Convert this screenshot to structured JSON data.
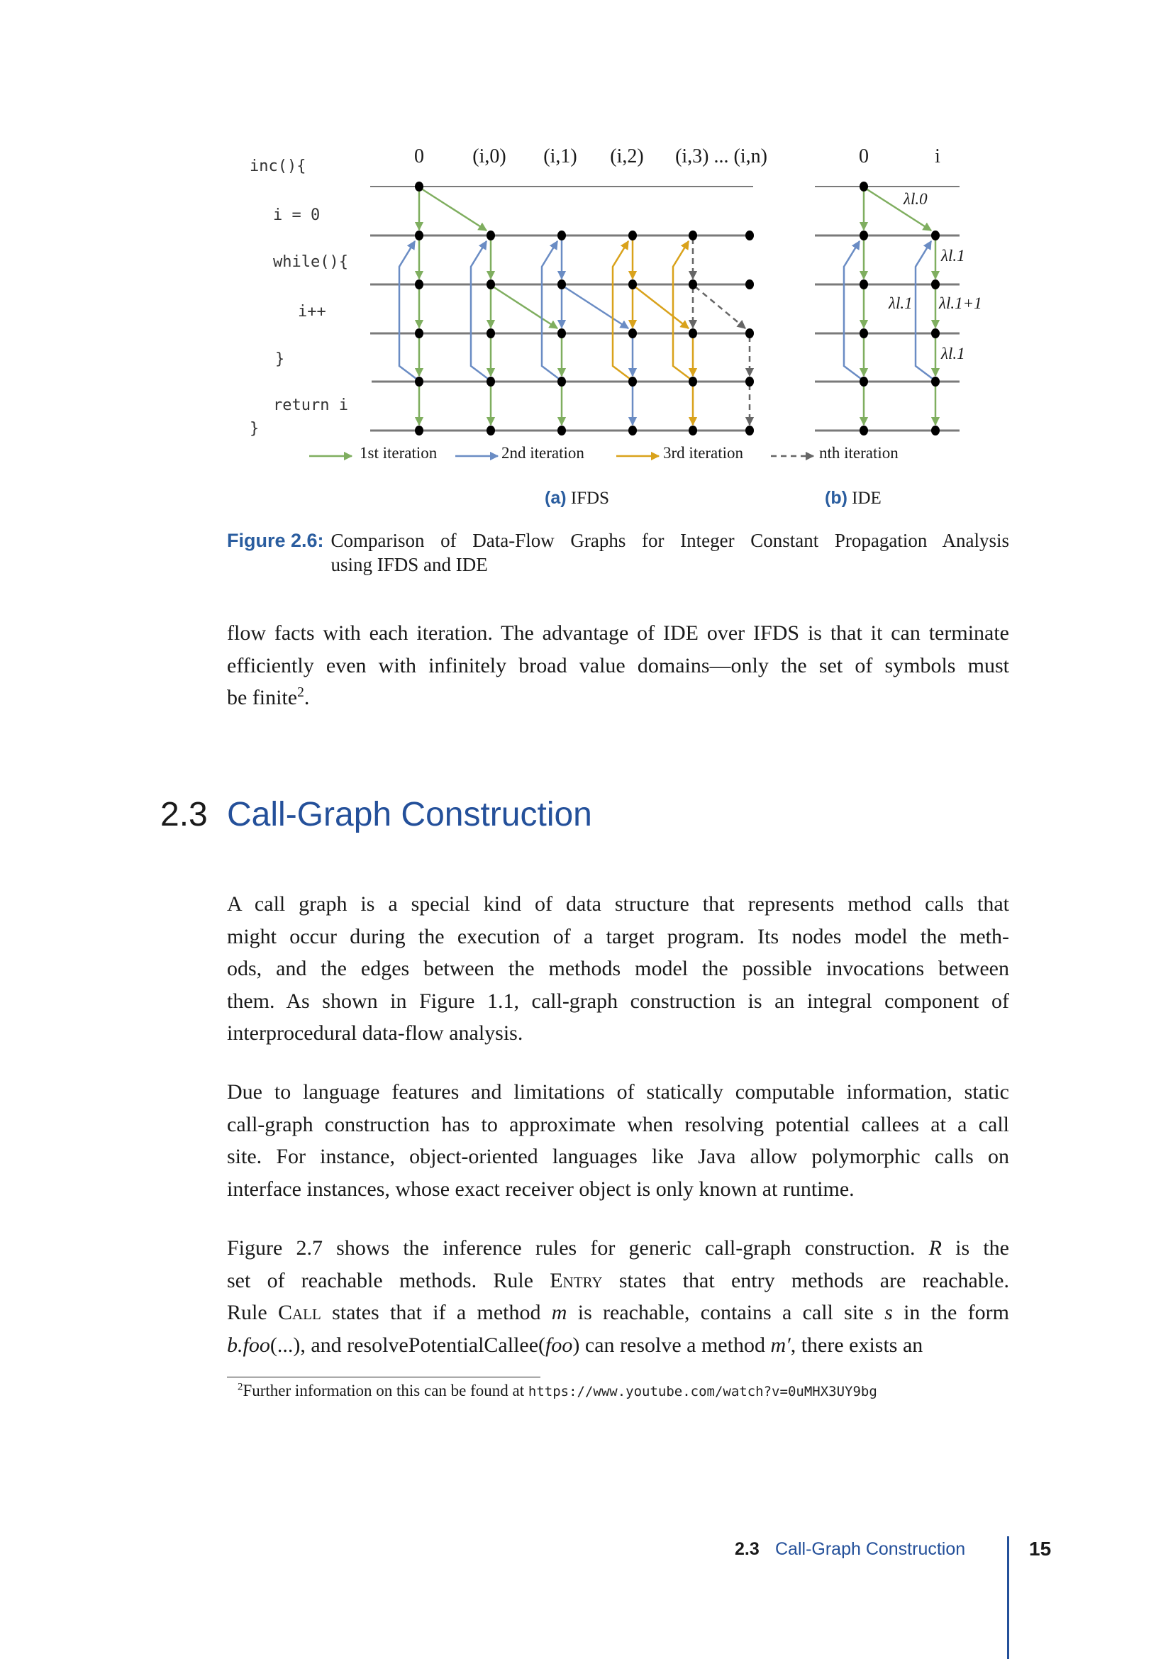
{
  "figure": {
    "code_lines": [
      "inc(){",
      "i = 0",
      "while(){",
      "i++",
      "}",
      "return i",
      "}"
    ],
    "ifds_columns": [
      "0",
      "(i,0)",
      "(i,1)",
      "(i,2)",
      "(i,3) ... (i,n)"
    ],
    "ide_columns": [
      "0",
      "i"
    ],
    "ide_edge_labels": [
      "λl.0",
      "λl.1",
      "λl.1",
      "λl.1+1",
      "λl.1"
    ],
    "legend": [
      "1st iteration",
      "2nd iteration",
      "3rd iteration",
      "nth iteration"
    ],
    "legend_colors": [
      "#7fae5f",
      "#6a8cc4",
      "#d9a21b",
      "#666666"
    ],
    "subcaption_a": {
      "label": "(a)",
      "text": "IFDS"
    },
    "subcaption_b": {
      "label": "(b)",
      "text": "IDE"
    },
    "caption": {
      "label": "Figure 2.6:",
      "text_line1": "Comparison of Data-Flow Graphs for Integer Constant Propagation Analysis",
      "text_line2": "using IFDS and IDE"
    }
  },
  "paragraphs": [
    [
      [
        {
          "t": "flow facts with each iteration. The advantage of IDE over IFDS is that it can terminate"
        }
      ],
      [
        {
          "t": "efficiently even with infinitely broad value domains—only the set of symbols must"
        }
      ],
      [
        {
          "t": "be finite"
        },
        {
          "t": "2",
          "s": "sup"
        },
        {
          "t": "."
        }
      ]
    ]
  ],
  "section": {
    "number": "2.3",
    "title": "Call-Graph Construction"
  },
  "body": [
    [
      [
        {
          "t": "A call graph is a special kind of data structure that represents method calls that"
        }
      ],
      [
        {
          "t": "might occur during the execution of a target program. Its nodes model the meth-"
        }
      ],
      [
        {
          "t": "ods, and the edges between the methods model the possible invocations between"
        }
      ],
      [
        {
          "t": "them. As shown in Figure 1.1, call-graph construction is an integral component of"
        }
      ],
      [
        {
          "t": "interprocedural data-flow analysis."
        }
      ]
    ],
    [
      [
        {
          "t": "Due to language features and limitations of statically computable information, static"
        }
      ],
      [
        {
          "t": "call-graph construction has to approximate when resolving potential callees at a call"
        }
      ],
      [
        {
          "t": "site. For instance, object-oriented languages like Java allow polymorphic calls on"
        }
      ],
      [
        {
          "t": "interface instances, whose exact receiver object is only known at runtime."
        }
      ]
    ],
    [
      [
        {
          "t": "Figure 2.7 shows the inference rules for generic call-graph construction. "
        },
        {
          "t": "R",
          "s": "i"
        },
        {
          "t": " is the"
        }
      ],
      [
        {
          "t": "set of reachable methods. Rule "
        },
        {
          "t": "Entry",
          "s": "sc"
        },
        {
          "t": " states that entry methods are reachable."
        }
      ],
      [
        {
          "t": "Rule "
        },
        {
          "t": "Call",
          "s": "sc"
        },
        {
          "t": " states that if a method "
        },
        {
          "t": "m",
          "s": "i"
        },
        {
          "t": " is reachable, contains a call site "
        },
        {
          "t": "s",
          "s": "i"
        },
        {
          "t": " in the form"
        }
      ],
      [
        {
          "t": "b.foo",
          "s": "i"
        },
        {
          "t": "(...), and resolvePotentialCallee("
        },
        {
          "t": "foo",
          "s": "i"
        },
        {
          "t": ") can resolve a method "
        },
        {
          "t": "m′",
          "s": "i"
        },
        {
          "t": ", there exists an"
        }
      ]
    ]
  ],
  "footnote": {
    "mark": "2",
    "text": "Further information on this can be found at ",
    "url": "https://www.youtube.com/watch?v=0uMHX3UY9bg"
  },
  "footer": {
    "section_number": "2.3",
    "section_title": "Call-Graph Construction",
    "page_number": "15"
  },
  "colors": {
    "accent": "#24509a",
    "green": "#7fae5f",
    "blue": "#6a8cc4",
    "orange": "#d9a21b",
    "gray": "#666666"
  }
}
